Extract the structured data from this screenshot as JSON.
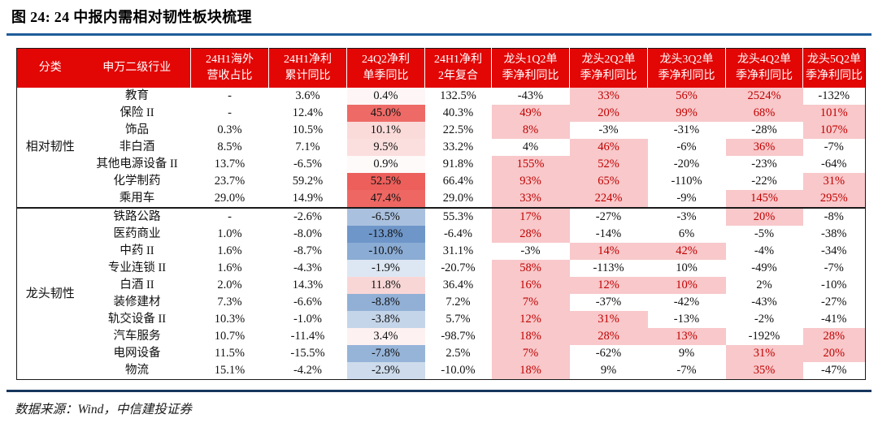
{
  "title": "图 24: 24 中报内需相对韧性板块梳理",
  "source": "数据来源：Wind，中信建投证券",
  "colors": {
    "header_bg": "#E20605",
    "highlight_bg": "#F8C8CA",
    "highlight_text": "#C00000",
    "scale_red_max": "#EC5F5B",
    "scale_blue_max": "#6E96C9",
    "title_rule": "#1F5C99",
    "footer_rule": "#17365D"
  },
  "chart_data": {
    "type": "table",
    "title": "图 24: 24 中报内需相对韧性板块梳理",
    "columns": [
      "分类",
      "申万二级行业",
      "24H1海外营收占比",
      "24H1净利累计同比",
      "24Q2净利单季同比",
      "24H1净利2年复合",
      "龙头1Q2单季净利同比",
      "龙头2Q2单季净利同比",
      "龙头3Q2单季净利同比",
      "龙头4Q2单季净利同比",
      "龙头5Q2单季净利同比"
    ],
    "header_lines": [
      {
        "l1": "分类"
      },
      {
        "l1": "申万二级行业"
      },
      {
        "l1": "24H1海外",
        "l2": "营收占比"
      },
      {
        "l1": "24H1净利",
        "l2": "累计同比"
      },
      {
        "l1": "24Q2净利",
        "l2": "单季同比"
      },
      {
        "l1": "24H1净利",
        "l2": "2年复合"
      },
      {
        "l1": "龙头1Q2单",
        "l2": "季净利同比"
      },
      {
        "l1": "龙头2Q2单",
        "l2": "季净利同比"
      },
      {
        "l1": "龙头3Q2单",
        "l2": "季净利同比"
      },
      {
        "l1": "龙头4Q2单",
        "l2": "季净利同比"
      },
      {
        "l1": "龙头5Q2单",
        "l2": "季净利同比"
      }
    ],
    "groups": [
      {
        "category": "相对韧性",
        "rows": [
          {
            "industry": "教育",
            "overseas": "-",
            "h1_cum": "3.6%",
            "q2": "0.4%",
            "q2_bg": "#FEF6F6",
            "h1_2y": "132.5%",
            "leaders": [
              {
                "v": "-43%",
                "hl": false
              },
              {
                "v": "33%",
                "hl": true
              },
              {
                "v": "56%",
                "hl": true
              },
              {
                "v": "2524%",
                "hl": true
              },
              {
                "v": "-132%",
                "hl": false
              }
            ]
          },
          {
            "industry": "保险 II",
            "overseas": "-",
            "h1_cum": "12.4%",
            "q2": "45.0%",
            "q2_bg": "#EE6A66",
            "h1_2y": "40.3%",
            "leaders": [
              {
                "v": "49%",
                "hl": true
              },
              {
                "v": "20%",
                "hl": true
              },
              {
                "v": "99%",
                "hl": true
              },
              {
                "v": "68%",
                "hl": true
              },
              {
                "v": "101%",
                "hl": true
              }
            ]
          },
          {
            "industry": "饰品",
            "overseas": "0.3%",
            "h1_cum": "10.5%",
            "q2": "10.1%",
            "q2_bg": "#FADBDA",
            "h1_2y": "22.5%",
            "leaders": [
              {
                "v": "8%",
                "hl": true
              },
              {
                "v": "-3%",
                "hl": false
              },
              {
                "v": "-31%",
                "hl": false
              },
              {
                "v": "-28%",
                "hl": false
              },
              {
                "v": "107%",
                "hl": true
              }
            ]
          },
          {
            "industry": "非白酒",
            "overseas": "8.5%",
            "h1_cum": "7.1%",
            "q2": "9.5%",
            "q2_bg": "#FBDFDE",
            "h1_2y": "33.2%",
            "leaders": [
              {
                "v": "4%",
                "hl": false
              },
              {
                "v": "46%",
                "hl": true
              },
              {
                "v": "-6%",
                "hl": false
              },
              {
                "v": "36%",
                "hl": true
              },
              {
                "v": "-7%",
                "hl": false
              }
            ]
          },
          {
            "industry": "其他电源设备 II",
            "overseas": "13.7%",
            "h1_cum": "-6.5%",
            "q2": "0.9%",
            "q2_bg": "#FEFAFA",
            "h1_2y": "91.8%",
            "leaders": [
              {
                "v": "155%",
                "hl": true
              },
              {
                "v": "52%",
                "hl": true
              },
              {
                "v": "-20%",
                "hl": false
              },
              {
                "v": "-23%",
                "hl": false
              },
              {
                "v": "-64%",
                "hl": false
              }
            ]
          },
          {
            "industry": "化学制药",
            "overseas": "23.7%",
            "h1_cum": "59.2%",
            "q2": "52.5%",
            "q2_bg": "#EC5F5B",
            "h1_2y": "66.4%",
            "leaders": [
              {
                "v": "93%",
                "hl": true
              },
              {
                "v": "65%",
                "hl": true
              },
              {
                "v": "-110%",
                "hl": false
              },
              {
                "v": "-22%",
                "hl": false
              },
              {
                "v": "31%",
                "hl": true
              }
            ]
          },
          {
            "industry": "乘用车",
            "overseas": "29.0%",
            "h1_cum": "14.9%",
            "q2": "47.4%",
            "q2_bg": "#EE6763",
            "h1_2y": "29.0%",
            "leaders": [
              {
                "v": "33%",
                "hl": true
              },
              {
                "v": "224%",
                "hl": true
              },
              {
                "v": "-9%",
                "hl": false
              },
              {
                "v": "145%",
                "hl": true
              },
              {
                "v": "295%",
                "hl": true
              }
            ]
          }
        ]
      },
      {
        "category": "龙头韧性",
        "rows": [
          {
            "industry": "铁路公路",
            "overseas": "-",
            "h1_cum": "-2.6%",
            "q2": "-6.5%",
            "q2_bg": "#A9C1DF",
            "h1_2y": "55.3%",
            "leaders": [
              {
                "v": "17%",
                "hl": true
              },
              {
                "v": "-27%",
                "hl": false
              },
              {
                "v": "-3%",
                "hl": false
              },
              {
                "v": "20%",
                "hl": true
              },
              {
                "v": "-8%",
                "hl": false
              }
            ]
          },
          {
            "industry": "医药商业",
            "overseas": "1.0%",
            "h1_cum": "-8.0%",
            "q2": "-13.8%",
            "q2_bg": "#6E96C9",
            "h1_2y": "-6.4%",
            "leaders": [
              {
                "v": "28%",
                "hl": true
              },
              {
                "v": "-14%",
                "hl": false
              },
              {
                "v": "6%",
                "hl": false
              },
              {
                "v": "-5%",
                "hl": false
              },
              {
                "v": "-38%",
                "hl": false
              }
            ]
          },
          {
            "industry": "中药 II",
            "overseas": "1.6%",
            "h1_cum": "-8.7%",
            "q2": "-10.0%",
            "q2_bg": "#8BACD4",
            "h1_2y": "31.1%",
            "leaders": [
              {
                "v": "-3%",
                "hl": false
              },
              {
                "v": "14%",
                "hl": true
              },
              {
                "v": "42%",
                "hl": true
              },
              {
                "v": "-4%",
                "hl": false
              },
              {
                "v": "-34%",
                "hl": false
              }
            ]
          },
          {
            "industry": "专业连锁 II",
            "overseas": "1.6%",
            "h1_cum": "-4.3%",
            "q2": "-1.9%",
            "q2_bg": "#DDE7F3",
            "h1_2y": "-20.7%",
            "leaders": [
              {
                "v": "58%",
                "hl": true
              },
              {
                "v": "-113%",
                "hl": false
              },
              {
                "v": "10%",
                "hl": false
              },
              {
                "v": "-49%",
                "hl": false
              },
              {
                "v": "-7%",
                "hl": false
              }
            ]
          },
          {
            "industry": "白酒 II",
            "overseas": "2.0%",
            "h1_cum": "14.3%",
            "q2": "11.8%",
            "q2_bg": "#F9D6D6",
            "h1_2y": "36.4%",
            "leaders": [
              {
                "v": "16%",
                "hl": true
              },
              {
                "v": "12%",
                "hl": true
              },
              {
                "v": "10%",
                "hl": true
              },
              {
                "v": "2%",
                "hl": false
              },
              {
                "v": "-10%",
                "hl": false
              }
            ]
          },
          {
            "industry": "装修建材",
            "overseas": "7.3%",
            "h1_cum": "-6.6%",
            "q2": "-8.8%",
            "q2_bg": "#92B0D6",
            "h1_2y": "7.2%",
            "leaders": [
              {
                "v": "7%",
                "hl": true
              },
              {
                "v": "-37%",
                "hl": false
              },
              {
                "v": "-42%",
                "hl": false
              },
              {
                "v": "-43%",
                "hl": false
              },
              {
                "v": "-27%",
                "hl": false
              }
            ]
          },
          {
            "industry": "轨交设备 II",
            "overseas": "10.3%",
            "h1_cum": "-1.0%",
            "q2": "-3.8%",
            "q2_bg": "#C5D5E9",
            "h1_2y": "5.7%",
            "leaders": [
              {
                "v": "12%",
                "hl": true
              },
              {
                "v": "31%",
                "hl": true
              },
              {
                "v": "-13%",
                "hl": false
              },
              {
                "v": "-2%",
                "hl": false
              },
              {
                "v": "-41%",
                "hl": false
              }
            ]
          },
          {
            "industry": "汽车服务",
            "overseas": "10.7%",
            "h1_cum": "-11.4%",
            "q2": "3.4%",
            "q2_bg": "#FDF1F1",
            "h1_2y": "-98.7%",
            "leaders": [
              {
                "v": "18%",
                "hl": true
              },
              {
                "v": "28%",
                "hl": true
              },
              {
                "v": "13%",
                "hl": true
              },
              {
                "v": "-192%",
                "hl": false
              },
              {
                "v": "28%",
                "hl": true
              }
            ]
          },
          {
            "industry": "电网设备",
            "overseas": "11.5%",
            "h1_cum": "-15.5%",
            "q2": "-7.8%",
            "q2_bg": "#96B4D8",
            "h1_2y": "2.5%",
            "leaders": [
              {
                "v": "7%",
                "hl": true
              },
              {
                "v": "-62%",
                "hl": false
              },
              {
                "v": "9%",
                "hl": false
              },
              {
                "v": "31%",
                "hl": true
              },
              {
                "v": "20%",
                "hl": true
              }
            ]
          },
          {
            "industry": "物流",
            "overseas": "15.1%",
            "h1_cum": "-4.2%",
            "q2": "-2.9%",
            "q2_bg": "#CDDBEC",
            "h1_2y": "-10.0%",
            "leaders": [
              {
                "v": "18%",
                "hl": true
              },
              {
                "v": "9%",
                "hl": false
              },
              {
                "v": "-7%",
                "hl": false
              },
              {
                "v": "35%",
                "hl": true
              },
              {
                "v": "-47%",
                "hl": false
              }
            ]
          }
        ]
      }
    ]
  }
}
